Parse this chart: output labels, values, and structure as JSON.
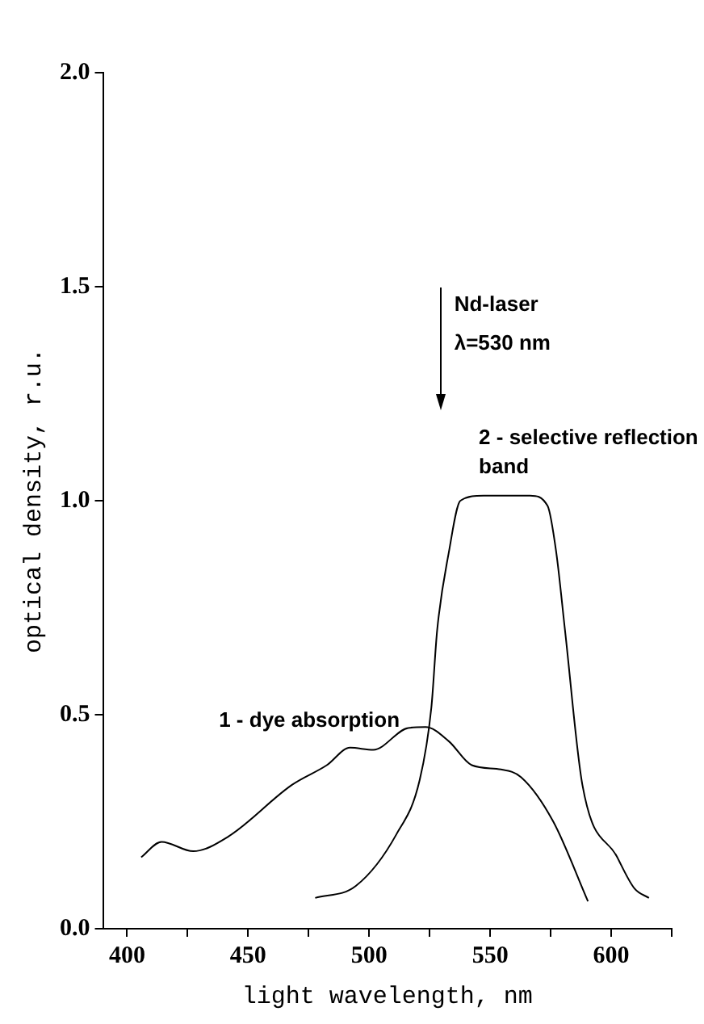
{
  "chart_data": {
    "type": "line",
    "xlabel": "light wavelength, nm",
    "ylabel": "optical density, r.u.",
    "xlim": [
      390,
      625
    ],
    "xticks": [
      400,
      {
        "value": 425,
        "label": null
      },
      450,
      {
        "value": 475,
        "label": null
      },
      500,
      {
        "value": 525,
        "label": null
      },
      550,
      {
        "value": 575,
        "label": null
      },
      600,
      {
        "value": 625,
        "label": null
      }
    ],
    "ylim": [
      0,
      2
    ],
    "yticks": [
      {
        "value": 0,
        "label": "0.0"
      },
      0.5,
      {
        "value": 1,
        "label": "1.0"
      },
      1.5,
      {
        "value": 2,
        "label": "2.0"
      }
    ],
    "grid": false,
    "legend": false,
    "marker": "none",
    "line_style": "solid",
    "series": [
      {
        "name": "1 - dye absorption",
        "color": "#000000",
        "x": [
          405.8,
          414.2,
          427.3,
          441.7,
          468.1,
          482.5,
          492.1,
          501.7,
          516.1,
          523.3,
          532.9,
          542.4,
          554.5,
          562.8,
          576.0,
          590.4
        ],
        "values": [
          0.167,
          0.203,
          0.181,
          0.215,
          0.336,
          0.382,
          0.423,
          0.418,
          0.469,
          0.471,
          0.438,
          0.382,
          0.372,
          0.354,
          0.251,
          0.064
        ]
      },
      {
        "name": "2 - selective reflection band",
        "color": "#000000",
        "x": [
          477.7,
          494.5,
          511.3,
          520.9,
          525.7,
          528.1,
          532.9,
          537.7,
          547.3,
          566.5,
          573.7,
          577.3,
          580.9,
          588.1,
          602.5,
          609.6,
          615.6
        ],
        "values": [
          0.072,
          0.1,
          0.221,
          0.348,
          0.517,
          0.698,
          0.879,
          1.0,
          1.012,
          1.012,
          0.988,
          0.879,
          0.698,
          0.336,
          0.167,
          0.094,
          0.072
        ]
      }
    ],
    "annotations": [
      "Nd-laser\nλ=530 nm"
    ]
  }
}
